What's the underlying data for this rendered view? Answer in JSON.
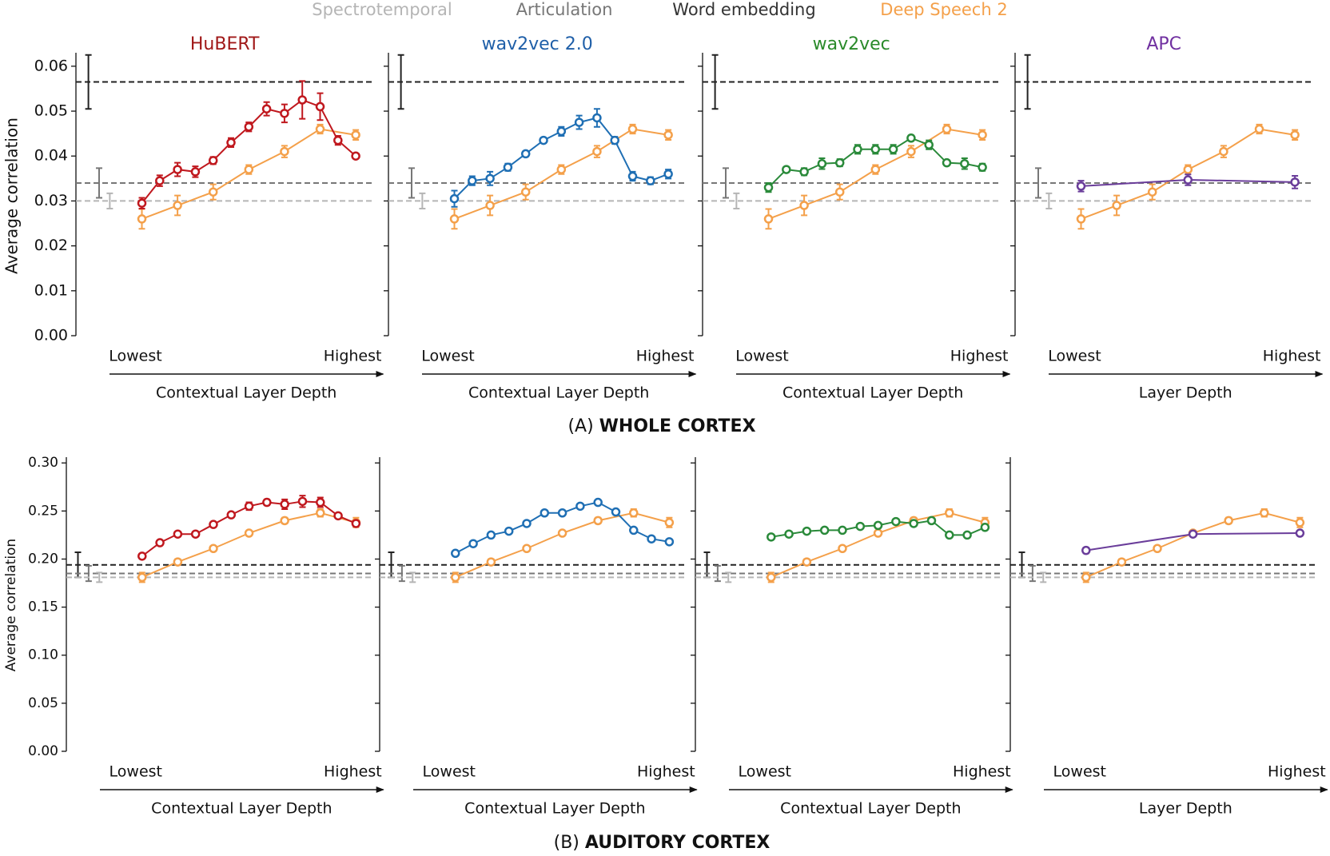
{
  "legend": [
    {
      "name": "Spectrotemporal",
      "color": "#b5b5b5"
    },
    {
      "name": "Articulation",
      "color": "#777777"
    },
    {
      "name": "Word embedding",
      "color": "#333333"
    },
    {
      "name": "Deep Speech 2",
      "color": "#f4a04a"
    }
  ],
  "sections": [
    {
      "label": "(A)",
      "title": "WHOLE CORTEX"
    },
    {
      "label": "(B)",
      "title": "AUDITORY CORTEX"
    }
  ],
  "chart_data": [
    {
      "type": "line",
      "title": "HuBERT",
      "title_color": "#a01818",
      "ylabel": "Average correlation",
      "ytick_labels": true,
      "x_end_labels": [
        "Lowest",
        "Highest"
      ],
      "xlabel": "Contextual Layer Depth",
      "xlim": [
        -3.7,
        13
      ],
      "ylim": [
        0,
        0.063
      ],
      "yticks": [
        {
          "value": 0,
          "label": "0.00"
        },
        {
          "value": 0.01,
          "label": "0.01"
        },
        {
          "value": 0.02,
          "label": "0.02"
        },
        {
          "value": 0.03,
          "label": "0.03"
        },
        {
          "value": 0.04,
          "label": "0.04"
        },
        {
          "value": 0.05,
          "label": "0.05"
        },
        {
          "value": 0.06,
          "label": "0.06"
        }
      ],
      "baselines": [
        {
          "color": "#222222",
          "x": -3,
          "value": 0.0565,
          "error": 0.006
        },
        {
          "color": "#777777",
          "x": -2.4,
          "value": 0.034,
          "error": 0.0033
        },
        {
          "color": "#b5b5b5",
          "x": -1.8,
          "value": 0.03,
          "error": 0.0017
        }
      ],
      "series": [
        {
          "color": "#f4a04a",
          "x": [
            0,
            2,
            4,
            6,
            8,
            10,
            12
          ],
          "values": [
            0.026,
            0.029,
            0.032,
            0.037,
            0.041,
            0.046,
            0.0447
          ],
          "errors": [
            0.0022,
            0.0022,
            0.0017,
            0.001,
            0.0013,
            0.001,
            0.0011
          ]
        },
        {
          "color": "#c0181e",
          "x": [
            0,
            1,
            2,
            3,
            4,
            5,
            6,
            7,
            8,
            9,
            10,
            11,
            12
          ],
          "values": [
            0.0295,
            0.0345,
            0.037,
            0.0365,
            0.039,
            0.043,
            0.0465,
            0.0505,
            0.0495,
            0.0525,
            0.051,
            0.0435,
            0.04
          ],
          "errors": [
            0.0012,
            0.0012,
            0.0015,
            0.0012,
            0.0008,
            0.001,
            0.001,
            0.0015,
            0.002,
            0.0042,
            0.003,
            0.001,
            0.0005
          ]
        }
      ]
    },
    {
      "type": "line",
      "title": "wav2vec 2.0",
      "title_color": "#1f5fa8",
      "ytick_labels": false,
      "x_end_labels": [
        "Lowest",
        "Highest"
      ],
      "xlabel": "Contextual Layer Depth",
      "xlim": [
        -3.7,
        13
      ],
      "ylim": [
        0,
        0.063
      ],
      "yticks": [
        0,
        0.01,
        0.02,
        0.03,
        0.04,
        0.05,
        0.06
      ],
      "baselines": [
        {
          "color": "#222222",
          "x": -3,
          "value": 0.0565,
          "error": 0.006
        },
        {
          "color": "#777777",
          "x": -2.4,
          "value": 0.034,
          "error": 0.0033
        },
        {
          "color": "#b5b5b5",
          "x": -1.8,
          "value": 0.03,
          "error": 0.0017
        }
      ],
      "series": [
        {
          "color": "#f4a04a",
          "x": [
            0,
            2,
            4,
            6,
            8,
            10,
            12
          ],
          "values": [
            0.026,
            0.029,
            0.032,
            0.037,
            0.041,
            0.046,
            0.0447
          ],
          "errors": [
            0.0022,
            0.0022,
            0.0017,
            0.001,
            0.0013,
            0.001,
            0.0011
          ]
        },
        {
          "color": "#1f6fb4",
          "x": [
            0,
            1,
            2,
            3,
            4,
            5,
            6,
            7,
            8,
            9,
            10,
            11,
            12
          ],
          "values": [
            0.0305,
            0.0345,
            0.035,
            0.0375,
            0.0405,
            0.0435,
            0.0455,
            0.0475,
            0.0485,
            0.0435,
            0.0355,
            0.0345,
            0.036
          ],
          "errors": [
            0.0018,
            0.001,
            0.0015,
            0.0008,
            0.0006,
            0.0006,
            0.001,
            0.0015,
            0.002,
            0.0008,
            0.001,
            0.0008,
            0.001
          ]
        }
      ]
    },
    {
      "type": "line",
      "title": "wav2vec",
      "title_color": "#2a8a2a",
      "ytick_labels": false,
      "x_end_labels": [
        "Lowest",
        "Highest"
      ],
      "xlabel": "Contextual Layer Depth",
      "xlim": [
        -3.7,
        13
      ],
      "ylim": [
        0,
        0.063
      ],
      "yticks": [
        0,
        0.01,
        0.02,
        0.03,
        0.04,
        0.05,
        0.06
      ],
      "baselines": [
        {
          "color": "#222222",
          "x": -3,
          "value": 0.0565,
          "error": 0.006
        },
        {
          "color": "#777777",
          "x": -2.4,
          "value": 0.034,
          "error": 0.0033
        },
        {
          "color": "#b5b5b5",
          "x": -1.8,
          "value": 0.03,
          "error": 0.0017
        }
      ],
      "series": [
        {
          "color": "#f4a04a",
          "x": [
            0,
            2,
            4,
            6,
            8,
            10,
            12
          ],
          "values": [
            0.026,
            0.029,
            0.032,
            0.037,
            0.041,
            0.046,
            0.0447
          ],
          "errors": [
            0.0022,
            0.0022,
            0.0017,
            0.001,
            0.0013,
            0.001,
            0.0011
          ]
        },
        {
          "color": "#2a8a3a",
          "x": [
            0,
            1,
            2,
            3,
            4,
            5,
            6,
            7,
            8,
            9,
            10,
            11,
            12
          ],
          "values": [
            0.033,
            0.037,
            0.0365,
            0.0383,
            0.0385,
            0.0415,
            0.0415,
            0.0415,
            0.044,
            0.0425,
            0.0385,
            0.0383,
            0.0375
          ],
          "errors": [
            0.001,
            0.0006,
            0.0008,
            0.0012,
            0.0008,
            0.001,
            0.001,
            0.001,
            0.0006,
            0.001,
            0.0006,
            0.0012,
            0.0008
          ]
        }
      ]
    },
    {
      "type": "line",
      "title": "APC",
      "title_color": "#7030a0",
      "ytick_labels": false,
      "x_end_labels": [
        "Lowest",
        "Highest"
      ],
      "xlabel": "Layer Depth",
      "xlim": [
        -3.7,
        13
      ],
      "ylim": [
        0,
        0.063
      ],
      "yticks": [
        0,
        0.01,
        0.02,
        0.03,
        0.04,
        0.05,
        0.06
      ],
      "baselines": [
        {
          "color": "#222222",
          "x": -3,
          "value": 0.0565,
          "error": 0.006
        },
        {
          "color": "#777777",
          "x": -2.4,
          "value": 0.034,
          "error": 0.0033
        },
        {
          "color": "#b5b5b5",
          "x": -1.8,
          "value": 0.03,
          "error": 0.0017
        }
      ],
      "series": [
        {
          "color": "#f4a04a",
          "x": [
            0,
            2,
            4,
            6,
            8,
            10,
            12
          ],
          "values": [
            0.026,
            0.029,
            0.032,
            0.037,
            0.041,
            0.046,
            0.0447
          ],
          "errors": [
            0.0022,
            0.0022,
            0.0017,
            0.001,
            0.0013,
            0.001,
            0.0011
          ]
        },
        {
          "color": "#6a3d9a",
          "x": [
            0,
            6,
            12
          ],
          "values": [
            0.0333,
            0.0347,
            0.0342
          ],
          "errors": [
            0.0012,
            0.0012,
            0.0014
          ]
        }
      ]
    },
    {
      "type": "line",
      "ylabel": "Average correlation",
      "ytick_labels": true,
      "x_end_labels": [
        "Lowest",
        "Highest"
      ],
      "xlabel": "Contextual Layer Depth",
      "xlim": [
        -4.25,
        13
      ],
      "ylim": [
        0,
        0.306
      ],
      "yticks": [
        {
          "value": 0,
          "label": "0.00"
        },
        {
          "value": 0.05,
          "label": "0.05"
        },
        {
          "value": 0.1,
          "label": "0.10"
        },
        {
          "value": 0.15,
          "label": "0.15"
        },
        {
          "value": 0.2,
          "label": "0.20"
        },
        {
          "value": 0.25,
          "label": "0.25"
        },
        {
          "value": 0.3,
          "label": "0.30"
        }
      ],
      "baselines": [
        {
          "color": "#222222",
          "x": -3.6,
          "value": 0.194,
          "error": 0.013
        },
        {
          "color": "#777777",
          "x": -3,
          "value": 0.185,
          "error": 0.008
        },
        {
          "color": "#b5b5b5",
          "x": -2.4,
          "value": 0.181,
          "error": 0.005
        }
      ],
      "series": [
        {
          "color": "#f4a04a",
          "x": [
            0,
            2,
            4,
            6,
            8,
            10,
            12
          ],
          "values": [
            0.181,
            0.197,
            0.211,
            0.227,
            0.24,
            0.248,
            0.238
          ],
          "errors": [
            0.005,
            0.003,
            0.002,
            0.002,
            0.003,
            0.004,
            0.005
          ]
        },
        {
          "color": "#c0181e",
          "x": [
            0,
            1,
            2,
            3,
            4,
            5,
            6,
            7,
            8,
            9,
            10,
            11,
            12
          ],
          "values": [
            0.203,
            0.217,
            0.226,
            0.226,
            0.236,
            0.246,
            0.255,
            0.259,
            0.257,
            0.26,
            0.259,
            0.245,
            0.237
          ],
          "errors": [
            0.002,
            0.002,
            0.002,
            0.002,
            0.002,
            0.002,
            0.004,
            0.003,
            0.005,
            0.006,
            0.005,
            0.002,
            0.003
          ]
        }
      ]
    },
    {
      "type": "line",
      "ytick_labels": false,
      "x_end_labels": [
        "Lowest",
        "Highest"
      ],
      "xlabel": "Contextual Layer Depth",
      "xlim": [
        -4.25,
        13
      ],
      "ylim": [
        0,
        0.306
      ],
      "yticks": [
        0,
        0.05,
        0.1,
        0.15,
        0.2,
        0.25,
        0.3
      ],
      "baselines": [
        {
          "color": "#222222",
          "x": -3.6,
          "value": 0.194,
          "error": 0.013
        },
        {
          "color": "#777777",
          "x": -3,
          "value": 0.185,
          "error": 0.008
        },
        {
          "color": "#b5b5b5",
          "x": -2.4,
          "value": 0.181,
          "error": 0.005
        }
      ],
      "series": [
        {
          "color": "#f4a04a",
          "x": [
            0,
            2,
            4,
            6,
            8,
            10,
            12
          ],
          "values": [
            0.181,
            0.197,
            0.211,
            0.227,
            0.24,
            0.248,
            0.238
          ],
          "errors": [
            0.005,
            0.003,
            0.002,
            0.002,
            0.003,
            0.004,
            0.005
          ]
        },
        {
          "color": "#1f6fb4",
          "x": [
            0,
            1,
            2,
            3,
            4,
            5,
            6,
            7,
            8,
            9,
            10,
            11,
            12
          ],
          "values": [
            0.206,
            0.216,
            0.225,
            0.229,
            0.237,
            0.248,
            0.248,
            0.255,
            0.259,
            0.249,
            0.23,
            0.221,
            0.218
          ],
          "errors": [
            0.002,
            0.002,
            0.002,
            0.002,
            0.002,
            0.002,
            0.002,
            0.002,
            0.002,
            0.002,
            0.002,
            0.002,
            0.002
          ]
        }
      ]
    },
    {
      "type": "line",
      "ytick_labels": false,
      "x_end_labels": [
        "Lowest",
        "Highest"
      ],
      "xlabel": "Contextual Layer Depth",
      "xlim": [
        -4.25,
        13
      ],
      "ylim": [
        0,
        0.306
      ],
      "yticks": [
        0,
        0.05,
        0.1,
        0.15,
        0.2,
        0.25,
        0.3
      ],
      "baselines": [
        {
          "color": "#222222",
          "x": -3.6,
          "value": 0.194,
          "error": 0.013
        },
        {
          "color": "#777777",
          "x": -3,
          "value": 0.185,
          "error": 0.008
        },
        {
          "color": "#b5b5b5",
          "x": -2.4,
          "value": 0.181,
          "error": 0.005
        }
      ],
      "series": [
        {
          "color": "#f4a04a",
          "x": [
            0,
            2,
            4,
            6,
            8,
            10,
            12
          ],
          "values": [
            0.181,
            0.197,
            0.211,
            0.227,
            0.24,
            0.248,
            0.238
          ],
          "errors": [
            0.005,
            0.003,
            0.002,
            0.002,
            0.003,
            0.004,
            0.005
          ]
        },
        {
          "color": "#2a8a3a",
          "x": [
            0,
            1,
            2,
            3,
            4,
            5,
            6,
            7,
            8,
            9,
            10,
            11,
            12
          ],
          "values": [
            0.223,
            0.226,
            0.229,
            0.23,
            0.23,
            0.234,
            0.235,
            0.239,
            0.237,
            0.24,
            0.225,
            0.225,
            0.233
          ],
          "errors": [
            0.002,
            0.002,
            0.002,
            0.002,
            0.002,
            0.002,
            0.002,
            0.002,
            0.002,
            0.002,
            0.002,
            0.002,
            0.002
          ]
        }
      ]
    },
    {
      "type": "line",
      "ytick_labels": false,
      "x_end_labels": [
        "Lowest",
        "Highest"
      ],
      "xlabel": "Layer Depth",
      "xlim": [
        -4.25,
        13
      ],
      "ylim": [
        0,
        0.306
      ],
      "yticks": [
        0,
        0.05,
        0.1,
        0.15,
        0.2,
        0.25,
        0.3
      ],
      "baselines": [
        {
          "color": "#222222",
          "x": -3.6,
          "value": 0.194,
          "error": 0.013
        },
        {
          "color": "#777777",
          "x": -3,
          "value": 0.185,
          "error": 0.008
        },
        {
          "color": "#b5b5b5",
          "x": -2.4,
          "value": 0.181,
          "error": 0.005
        }
      ],
      "series": [
        {
          "color": "#f4a04a",
          "x": [
            0,
            2,
            4,
            6,
            8,
            10,
            12
          ],
          "values": [
            0.181,
            0.197,
            0.211,
            0.227,
            0.24,
            0.248,
            0.238
          ],
          "errors": [
            0.005,
            0.003,
            0.002,
            0.002,
            0.003,
            0.004,
            0.005
          ]
        },
        {
          "color": "#6a3d9a",
          "x": [
            0,
            6,
            12
          ],
          "values": [
            0.209,
            0.226,
            0.227
          ],
          "errors": [
            0.003,
            0.002,
            0.002
          ]
        }
      ]
    }
  ]
}
